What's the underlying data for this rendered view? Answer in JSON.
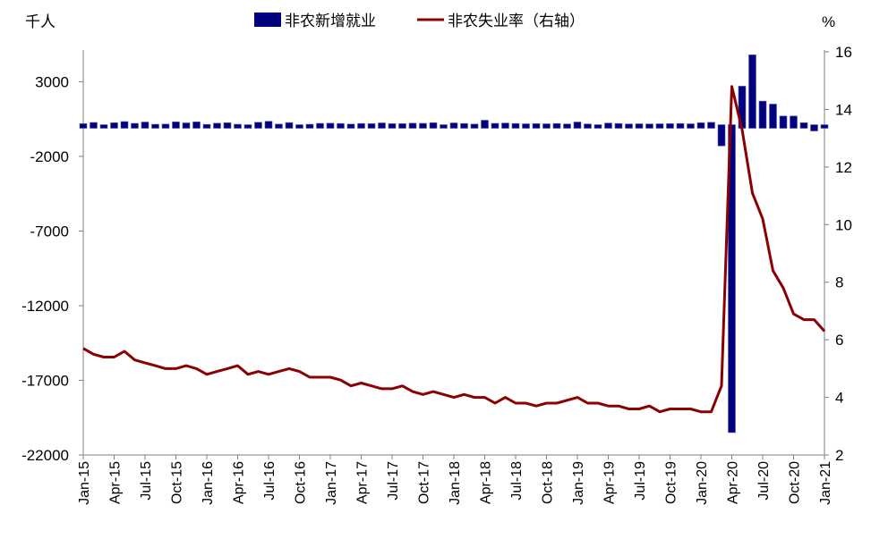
{
  "chart_data": {
    "type": "bar+line",
    "colors": {
      "bars": "#000080",
      "line": "#8B0000",
      "axis": "#808080"
    },
    "left_axis": {
      "unit": "千人",
      "ylim": [
        -22000,
        5000
      ],
      "ticks": [
        3000,
        -2000,
        -7000,
        -12000,
        -17000,
        -22000
      ]
    },
    "right_axis": {
      "unit": "%",
      "ylim": [
        2,
        16
      ],
      "ticks": [
        16,
        14,
        12,
        10,
        8,
        6,
        4,
        2
      ]
    },
    "legend": {
      "bar_label": "非农新增就业",
      "line_label": "非农失业率（右轴）",
      "position": "top"
    },
    "x_tick_labels": [
      "Jan-15",
      "Apr-15",
      "Jul-15",
      "Oct-15",
      "Jan-16",
      "Apr-16",
      "Jul-16",
      "Oct-16",
      "Jan-17",
      "Apr-17",
      "Jul-17",
      "Oct-17",
      "Jan-18",
      "Apr-18",
      "Jul-18",
      "Oct-18",
      "Jan-19",
      "Apr-19",
      "Jul-19",
      "Oct-19",
      "Jan-20",
      "Apr-20",
      "Jul-20",
      "Oct-20",
      "Jan-21"
    ],
    "months": [
      "Jan-15",
      "Feb-15",
      "Mar-15",
      "Apr-15",
      "May-15",
      "Jun-15",
      "Jul-15",
      "Aug-15",
      "Sep-15",
      "Oct-15",
      "Nov-15",
      "Dec-15",
      "Jan-16",
      "Feb-16",
      "Mar-16",
      "Apr-16",
      "May-16",
      "Jun-16",
      "Jul-16",
      "Aug-16",
      "Sep-16",
      "Oct-16",
      "Nov-16",
      "Dec-16",
      "Jan-17",
      "Feb-17",
      "Mar-17",
      "Apr-17",
      "May-17",
      "Jun-17",
      "Jul-17",
      "Aug-17",
      "Sep-17",
      "Oct-17",
      "Nov-17",
      "Dec-17",
      "Jan-18",
      "Feb-18",
      "Mar-18",
      "Apr-18",
      "May-18",
      "Jun-18",
      "Jul-18",
      "Aug-18",
      "Sep-18",
      "Oct-18",
      "Nov-18",
      "Dec-18",
      "Jan-19",
      "Feb-19",
      "Mar-19",
      "Apr-19",
      "May-19",
      "Jun-19",
      "Jul-19",
      "Aug-19",
      "Sep-19",
      "Oct-19",
      "Nov-19",
      "Dec-19",
      "Jan-20",
      "Feb-20",
      "Mar-20",
      "Apr-20",
      "May-20",
      "Jun-20",
      "Jul-20",
      "Aug-20",
      "Sep-20",
      "Oct-20",
      "Nov-20",
      "Dec-20",
      "Jan-21"
    ],
    "series": [
      {
        "name": "非农新增就业",
        "type": "bar",
        "axis": "left",
        "values": [
          190,
          270,
          80,
          250,
          330,
          210,
          300,
          150,
          160,
          310,
          240,
          310,
          140,
          220,
          250,
          150,
          40,
          280,
          350,
          160,
          260,
          120,
          150,
          210,
          220,
          200,
          160,
          200,
          190,
          240,
          190,
          190,
          220,
          210,
          250,
          120,
          240,
          200,
          160,
          420,
          210,
          230,
          200,
          180,
          190,
          180,
          200,
          170,
          300,
          170,
          60,
          230,
          200,
          170,
          180,
          170,
          180,
          190,
          200,
          180,
          250,
          280,
          -1300,
          -20500,
          2700,
          4800,
          1700,
          1500,
          700,
          700,
          250,
          -300,
          50
        ]
      },
      {
        "name": "非农失业率（右轴）",
        "type": "line",
        "axis": "right",
        "values": [
          5.7,
          5.5,
          5.4,
          5.4,
          5.6,
          5.3,
          5.2,
          5.1,
          5.0,
          5.0,
          5.1,
          5.0,
          4.8,
          4.9,
          5.0,
          5.1,
          4.8,
          4.9,
          4.8,
          4.9,
          5.0,
          4.9,
          4.7,
          4.7,
          4.7,
          4.6,
          4.4,
          4.5,
          4.4,
          4.3,
          4.3,
          4.4,
          4.2,
          4.1,
          4.2,
          4.1,
          4.0,
          4.1,
          4.0,
          4.0,
          3.8,
          4.0,
          3.8,
          3.8,
          3.7,
          3.8,
          3.8,
          3.9,
          4.0,
          3.8,
          3.8,
          3.7,
          3.7,
          3.6,
          3.6,
          3.7,
          3.5,
          3.6,
          3.6,
          3.6,
          3.5,
          3.5,
          4.4,
          14.8,
          13.3,
          11.1,
          10.2,
          8.4,
          7.8,
          6.9,
          6.7,
          6.7,
          6.3
        ]
      }
    ]
  }
}
